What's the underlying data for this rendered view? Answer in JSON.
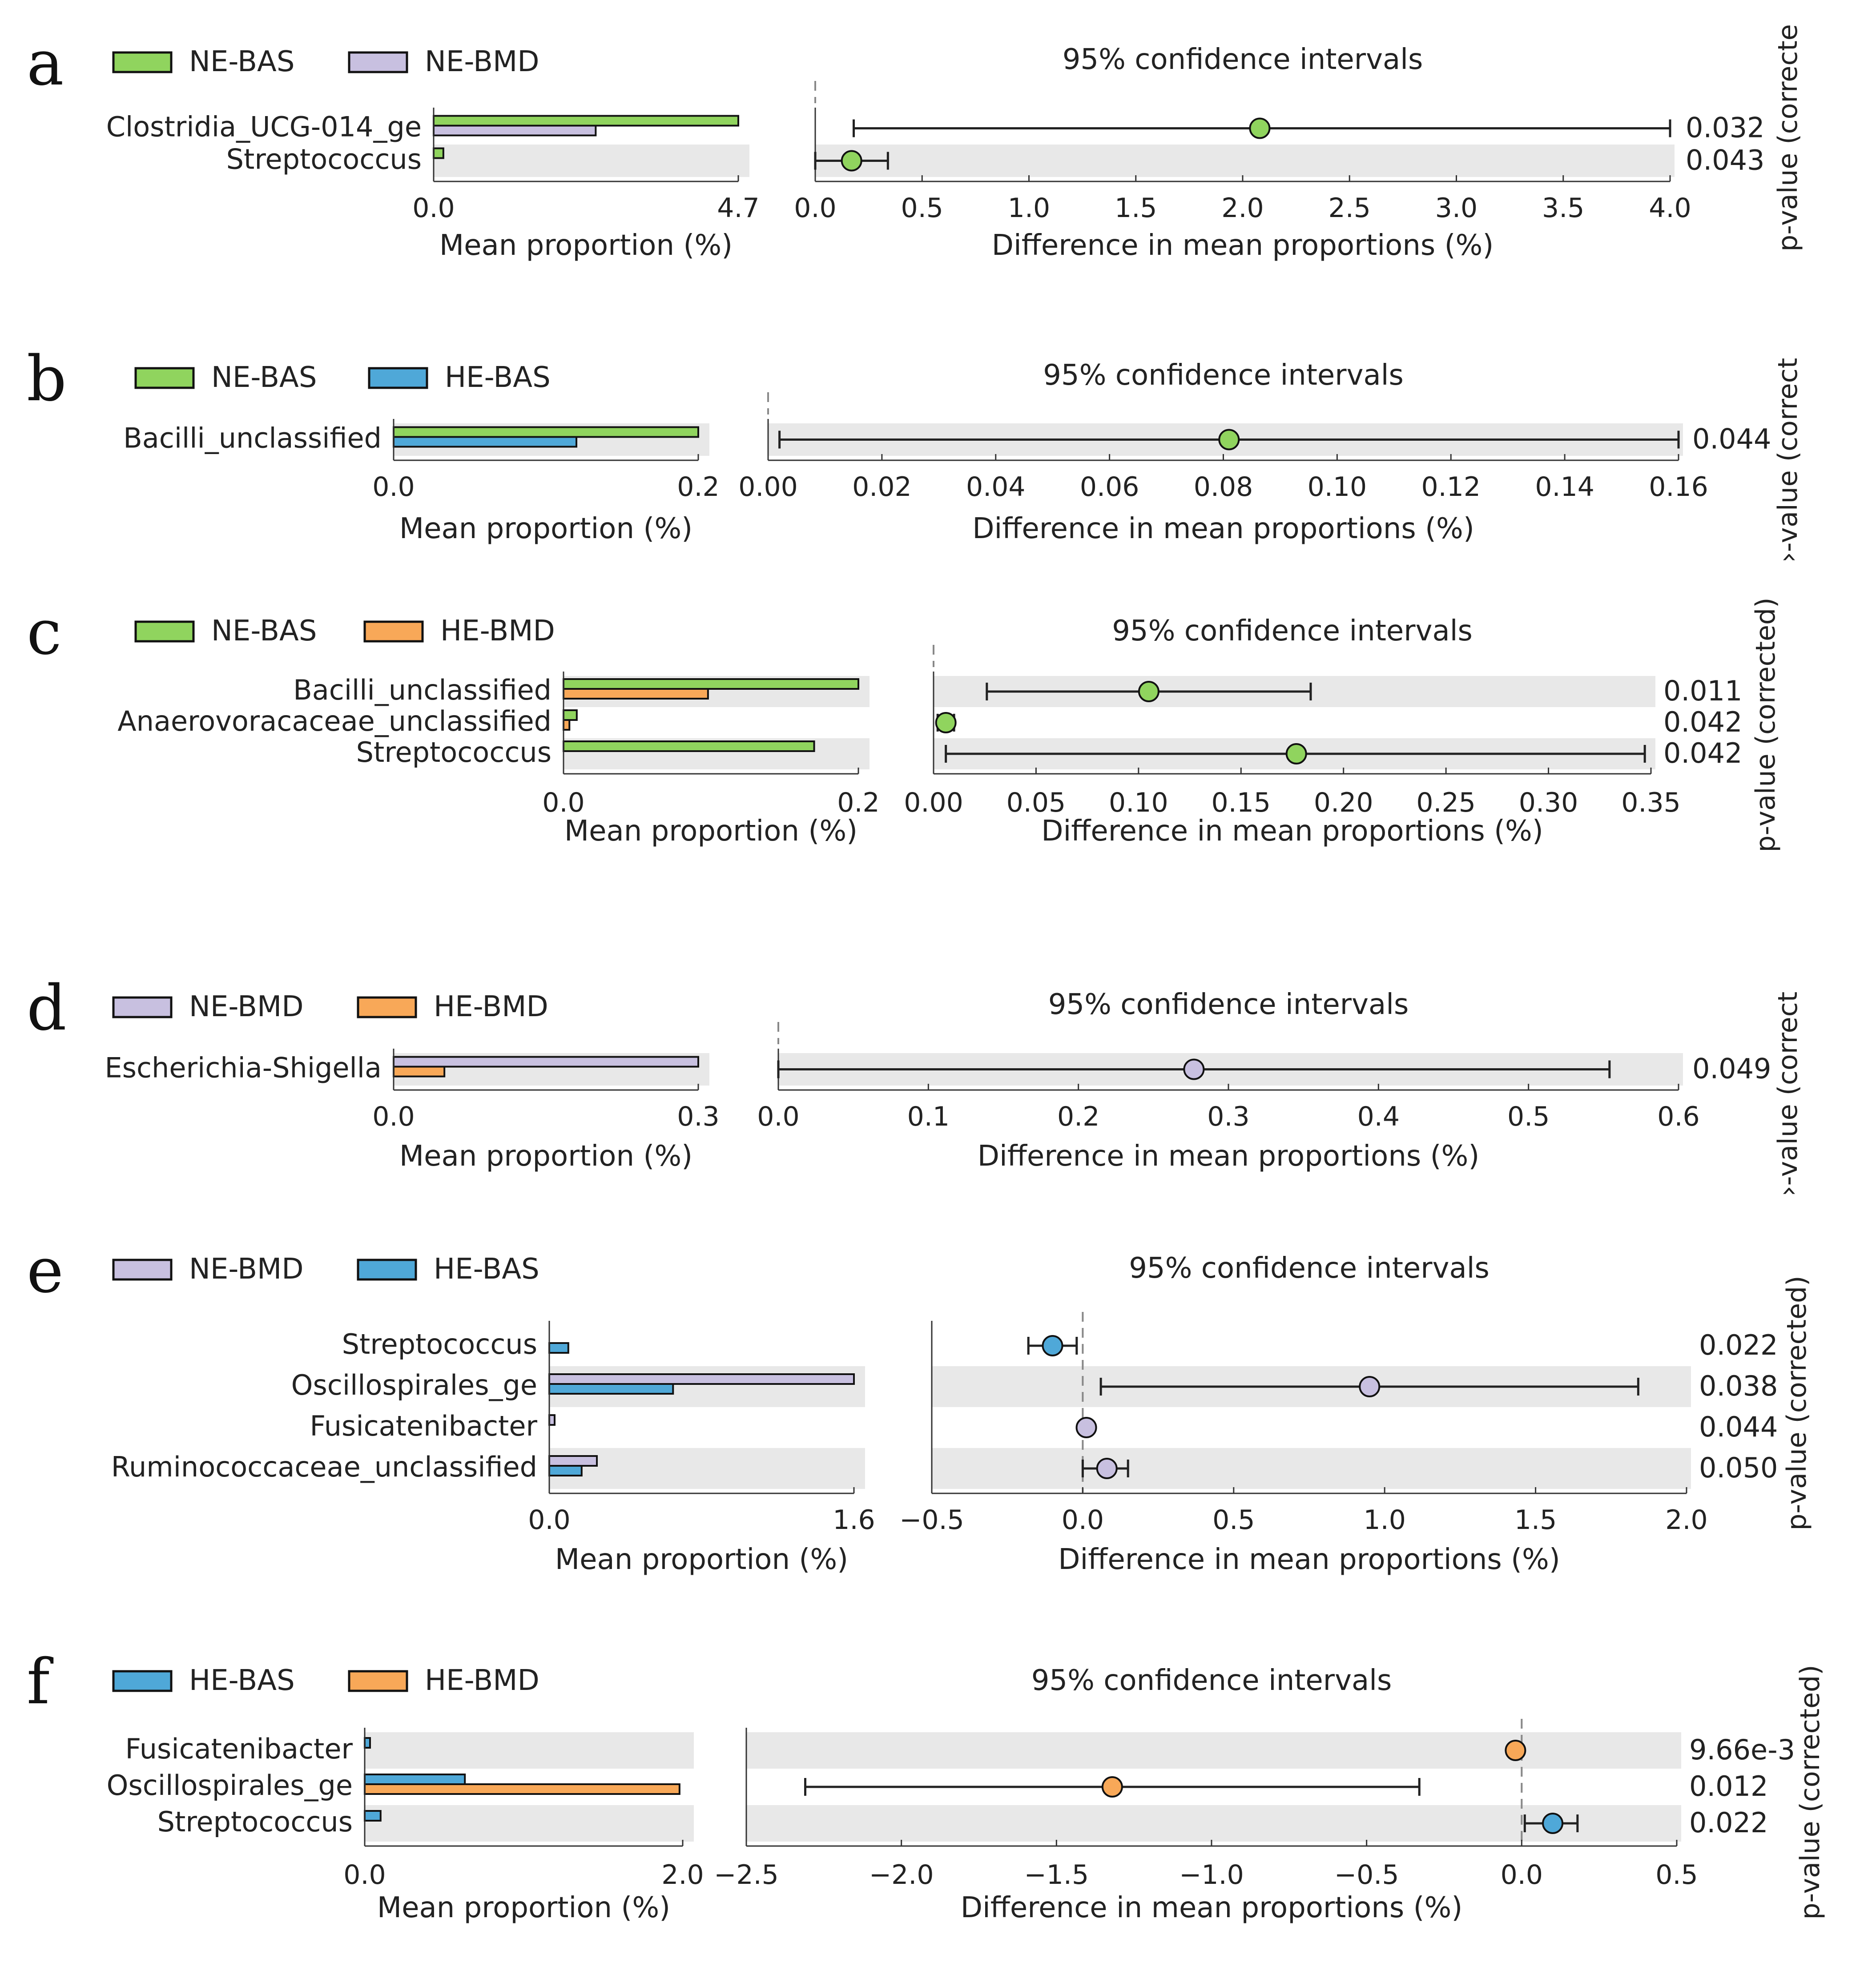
{
  "chart_data": [
    {
      "panel": "a",
      "type": "bar",
      "groups": [
        {
          "name": "NE-BAS",
          "color": "#90d45e"
        },
        {
          "name": "NE-BMD",
          "color": "#c8c0e0"
        }
      ],
      "categories": [
        "Clostridia_UCG-014_ge",
        "Streptococcus"
      ],
      "series": [
        {
          "name": "NE-BAS",
          "values": [
            4.7,
            0.15
          ]
        },
        {
          "name": "NE-BMD",
          "values": [
            2.5,
            0.0
          ]
        }
      ],
      "bar_xlim": [
        0,
        4.7
      ],
      "bar_ticks": [
        "0.0",
        "4.7"
      ],
      "bar_xlabel": "Mean proportion (%)",
      "ci_title": "95% confidence intervals",
      "ci": [
        {
          "estimate": 2.08,
          "low": 0.18,
          "high": 4.0,
          "color": "#90d45e"
        },
        {
          "estimate": 0.17,
          "low": 0.0,
          "high": 0.34,
          "color": "#90d45e"
        }
      ],
      "ci_xlim": [
        0,
        4.0
      ],
      "ci_ticks": [
        "0.0",
        "0.5",
        "1.0",
        "1.5",
        "2.0",
        "2.5",
        "3.0",
        "3.5",
        "4.0"
      ],
      "ci_xlabel": "Difference in mean proportions (%)",
      "pvalues": [
        "0.032",
        "0.043"
      ],
      "pvalue_label": "p-value (correcte"
    },
    {
      "panel": "b",
      "type": "bar",
      "groups": [
        {
          "name": "NE-BAS",
          "color": "#90d45e"
        },
        {
          "name": "HE-BAS",
          "color": "#4fa8d8"
        }
      ],
      "categories": [
        "Bacilli_unclassified"
      ],
      "series": [
        {
          "name": "NE-BAS",
          "values": [
            0.2
          ]
        },
        {
          "name": "HE-BAS",
          "values": [
            0.12
          ]
        }
      ],
      "bar_xlim": [
        0,
        0.2
      ],
      "bar_ticks": [
        "0.0",
        "0.2"
      ],
      "bar_xlabel": "Mean proportion (%)",
      "ci_title": "95% confidence intervals",
      "ci": [
        {
          "estimate": 0.081,
          "low": 0.002,
          "high": 0.16,
          "color": "#90d45e"
        }
      ],
      "ci_xlim": [
        0,
        0.16
      ],
      "ci_ticks": [
        "0.00",
        "0.02",
        "0.04",
        "0.06",
        "0.08",
        "0.10",
        "0.12",
        "0.14",
        "0.16"
      ],
      "ci_xlabel": "Difference in mean proportions (%)",
      "pvalues": [
        "0.044"
      ],
      "pvalue_label": "›-value (correct"
    },
    {
      "panel": "c",
      "type": "bar",
      "groups": [
        {
          "name": "NE-BAS",
          "color": "#90d45e"
        },
        {
          "name": "HE-BMD",
          "color": "#f8a858"
        }
      ],
      "categories": [
        "Bacilli_unclassified",
        "Anaerovoracaceae_unclassified",
        "Streptococcus"
      ],
      "series": [
        {
          "name": "NE-BAS",
          "values": [
            0.2,
            0.009,
            0.17
          ]
        },
        {
          "name": "HE-BMD",
          "values": [
            0.098,
            0.004,
            0.0
          ]
        }
      ],
      "bar_xlim": [
        0,
        0.2
      ],
      "bar_ticks": [
        "0.0",
        "0.2"
      ],
      "bar_xlabel": "Mean proportion (%)",
      "ci_title": "95% confidence intervals",
      "ci": [
        {
          "estimate": 0.105,
          "low": 0.026,
          "high": 0.184,
          "color": "#90d45e"
        },
        {
          "estimate": 0.006,
          "low": 0.002,
          "high": 0.01,
          "color": "#90d45e"
        },
        {
          "estimate": 0.177,
          "low": 0.006,
          "high": 0.347,
          "color": "#90d45e"
        }
      ],
      "ci_xlim": [
        0,
        0.35
      ],
      "ci_ticks": [
        "0.00",
        "0.05",
        "0.10",
        "0.15",
        "0.20",
        "0.25",
        "0.30",
        "0.35"
      ],
      "ci_xlabel": "Difference in mean proportions (%)",
      "pvalues": [
        "0.011",
        "0.042",
        "0.042"
      ],
      "pvalue_label": "p-value (corrected)"
    },
    {
      "panel": "d",
      "type": "bar",
      "groups": [
        {
          "name": "NE-BMD",
          "color": "#c8c0e0"
        },
        {
          "name": "HE-BMD",
          "color": "#f8a858"
        }
      ],
      "categories": [
        "Escherichia-Shigella"
      ],
      "series": [
        {
          "name": "NE-BMD",
          "values": [
            0.3
          ]
        },
        {
          "name": "HE-BMD",
          "values": [
            0.05
          ]
        }
      ],
      "bar_xlim": [
        0,
        0.3
      ],
      "bar_ticks": [
        "0.0",
        "0.3"
      ],
      "bar_xlabel": "Mean proportion (%)",
      "ci_title": "95% confidence intervals",
      "ci": [
        {
          "estimate": 0.277,
          "low": 0.0,
          "high": 0.554,
          "color": "#c8c0e0"
        }
      ],
      "ci_xlim": [
        0,
        0.6
      ],
      "ci_ticks": [
        "0.0",
        "0.1",
        "0.2",
        "0.3",
        "0.4",
        "0.5",
        "0.6"
      ],
      "ci_xlabel": "Difference in mean proportions (%)",
      "pvalues": [
        "0.049"
      ],
      "pvalue_label": "›-value (correct"
    },
    {
      "panel": "e",
      "type": "bar",
      "groups": [
        {
          "name": "NE-BMD",
          "color": "#c8c0e0"
        },
        {
          "name": "HE-BAS",
          "color": "#4fa8d8"
        }
      ],
      "categories": [
        "Streptococcus",
        "Oscillospirales_ge",
        "Fusicatenibacter",
        "Ruminococcaceae_unclassified"
      ],
      "series": [
        {
          "name": "NE-BMD",
          "values": [
            0.0,
            1.6,
            0.012,
            0.25
          ]
        },
        {
          "name": "HE-BAS",
          "values": [
            0.1,
            0.65,
            0.0,
            0.17
          ]
        }
      ],
      "bar_xlim": [
        0,
        1.6
      ],
      "bar_ticks": [
        "0.0",
        "1.6"
      ],
      "bar_xlabel": "Mean proportion (%)",
      "ci_title": "95% confidence intervals",
      "ci": [
        {
          "estimate": -0.1,
          "low": -0.18,
          "high": -0.02,
          "color": "#4fa8d8"
        },
        {
          "estimate": 0.95,
          "low": 0.06,
          "high": 1.84,
          "color": "#c8c0e0"
        },
        {
          "estimate": 0.012,
          "low": 0.012,
          "high": 0.012,
          "color": "#c8c0e0"
        },
        {
          "estimate": 0.08,
          "low": 0.0,
          "high": 0.15,
          "color": "#c8c0e0"
        }
      ],
      "ci_xlim": [
        -0.5,
        2.0
      ],
      "ci_ticks": [
        "−0.5",
        "0.0",
        "0.5",
        "1.0",
        "1.5",
        "2.0"
      ],
      "ci_xlabel": "Difference in mean proportions (%)",
      "pvalues": [
        "0.022",
        "0.038",
        "0.044",
        "0.050"
      ],
      "pvalue_label": "p-value (corrected)"
    },
    {
      "panel": "f",
      "type": "bar",
      "groups": [
        {
          "name": "HE-BAS",
          "color": "#4fa8d8"
        },
        {
          "name": "HE-BMD",
          "color": "#f8a858"
        }
      ],
      "categories": [
        "Fusicatenibacter",
        "Oscillospirales_ge",
        "Streptococcus"
      ],
      "series": [
        {
          "name": "HE-BAS",
          "values": [
            0.02,
            0.63,
            0.1
          ]
        },
        {
          "name": "HE-BMD",
          "values": [
            0.0,
            1.98,
            0.0
          ]
        }
      ],
      "bar_xlim": [
        0,
        2.0
      ],
      "bar_ticks": [
        "0.0",
        "2.0"
      ],
      "bar_xlabel": "Mean proportion (%)",
      "ci_title": "95% confidence intervals",
      "ci": [
        {
          "estimate": -0.02,
          "low": -0.02,
          "high": -0.02,
          "color": "#f8a858"
        },
        {
          "estimate": -1.32,
          "low": -2.31,
          "high": -0.33,
          "color": "#f8a858"
        },
        {
          "estimate": 0.1,
          "low": 0.01,
          "high": 0.18,
          "color": "#4fa8d8"
        }
      ],
      "ci_xlim": [
        -2.5,
        0.5
      ],
      "ci_ticks": [
        "−2.5",
        "−2.0",
        "−1.5",
        "−1.0",
        "−0.5",
        "0.0",
        "0.5"
      ],
      "ci_xlabel": "Difference in mean proportions (%)",
      "pvalues": [
        "9.66e-3",
        "0.012",
        "0.022"
      ],
      "pvalue_label": "p-value (corrected)"
    }
  ]
}
